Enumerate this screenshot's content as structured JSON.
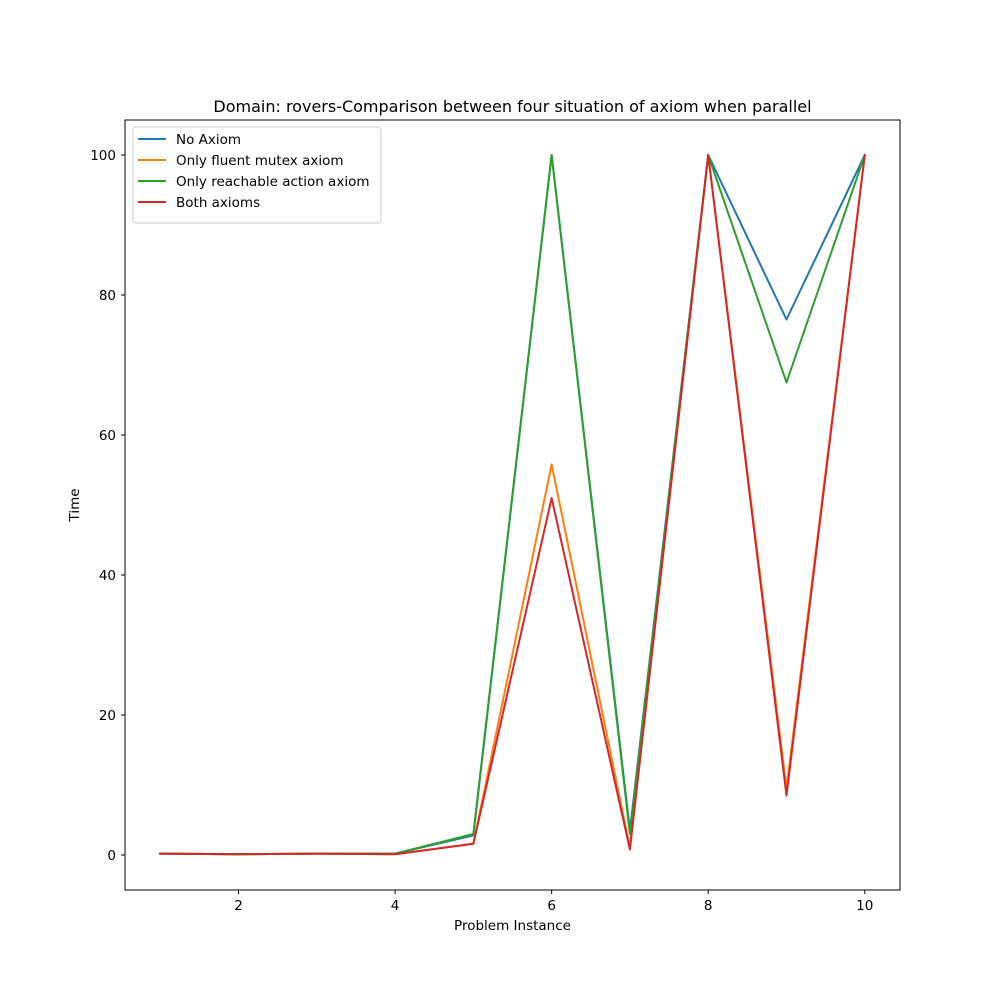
{
  "chart_data": {
    "type": "line",
    "title": "Domain: rovers-Comparison between four situation of axiom when parallel",
    "xlabel": "Problem Instance",
    "ylabel": "Time",
    "x": [
      1,
      2,
      3,
      4,
      5,
      6,
      7,
      8,
      9,
      10
    ],
    "xlim": [
      0.55,
      10.45
    ],
    "ylim": [
      -5,
      105
    ],
    "xticks": [
      2,
      4,
      6,
      8,
      10
    ],
    "yticks": [
      0,
      20,
      40,
      60,
      80,
      100
    ],
    "grid": false,
    "legend_position": "upper-left",
    "series": [
      {
        "name": "No Axiom",
        "color": "#1f77b4",
        "values": [
          0.2,
          0.1,
          0.2,
          0.2,
          2.8,
          100,
          3.5,
          100,
          76.5,
          100
        ]
      },
      {
        "name": "Only fluent mutex axiom",
        "color": "#ff7f0e",
        "values": [
          0.2,
          0.1,
          0.2,
          0.1,
          1.6,
          55.8,
          1.0,
          100,
          9.5,
          100
        ]
      },
      {
        "name": "Only reachable action axiom",
        "color": "#2ca02c",
        "values": [
          0.2,
          0.1,
          0.2,
          0.2,
          3.0,
          100,
          3.0,
          100,
          67.5,
          100
        ]
      },
      {
        "name": "Both axioms",
        "color": "#d62728",
        "values": [
          0.2,
          0.1,
          0.2,
          0.1,
          1.6,
          51.0,
          0.8,
          100,
          8.5,
          100
        ]
      }
    ]
  }
}
